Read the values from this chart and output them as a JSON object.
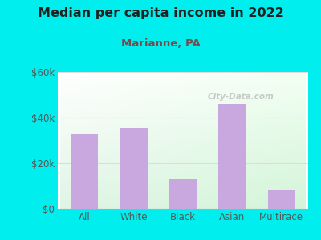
{
  "title": "Median per capita income in 2022",
  "subtitle": "Marianne, PA",
  "categories": [
    "All",
    "White",
    "Black",
    "Asian",
    "Multirace"
  ],
  "values": [
    33000,
    35500,
    13000,
    46000,
    8000
  ],
  "bar_color": "#c9a8e0",
  "title_fontsize": 11.5,
  "subtitle_fontsize": 9.5,
  "subtitle_color": "#7a4a4a",
  "title_color": "#222222",
  "background_outer": "#00EEEE",
  "ylim": [
    0,
    60000
  ],
  "yticks": [
    0,
    20000,
    40000,
    60000
  ],
  "ytick_labels": [
    "$0",
    "$20k",
    "$40k",
    "$60k"
  ],
  "watermark": "City-Data.com",
  "tick_color": "#555555",
  "grid_color": "#dddddd"
}
